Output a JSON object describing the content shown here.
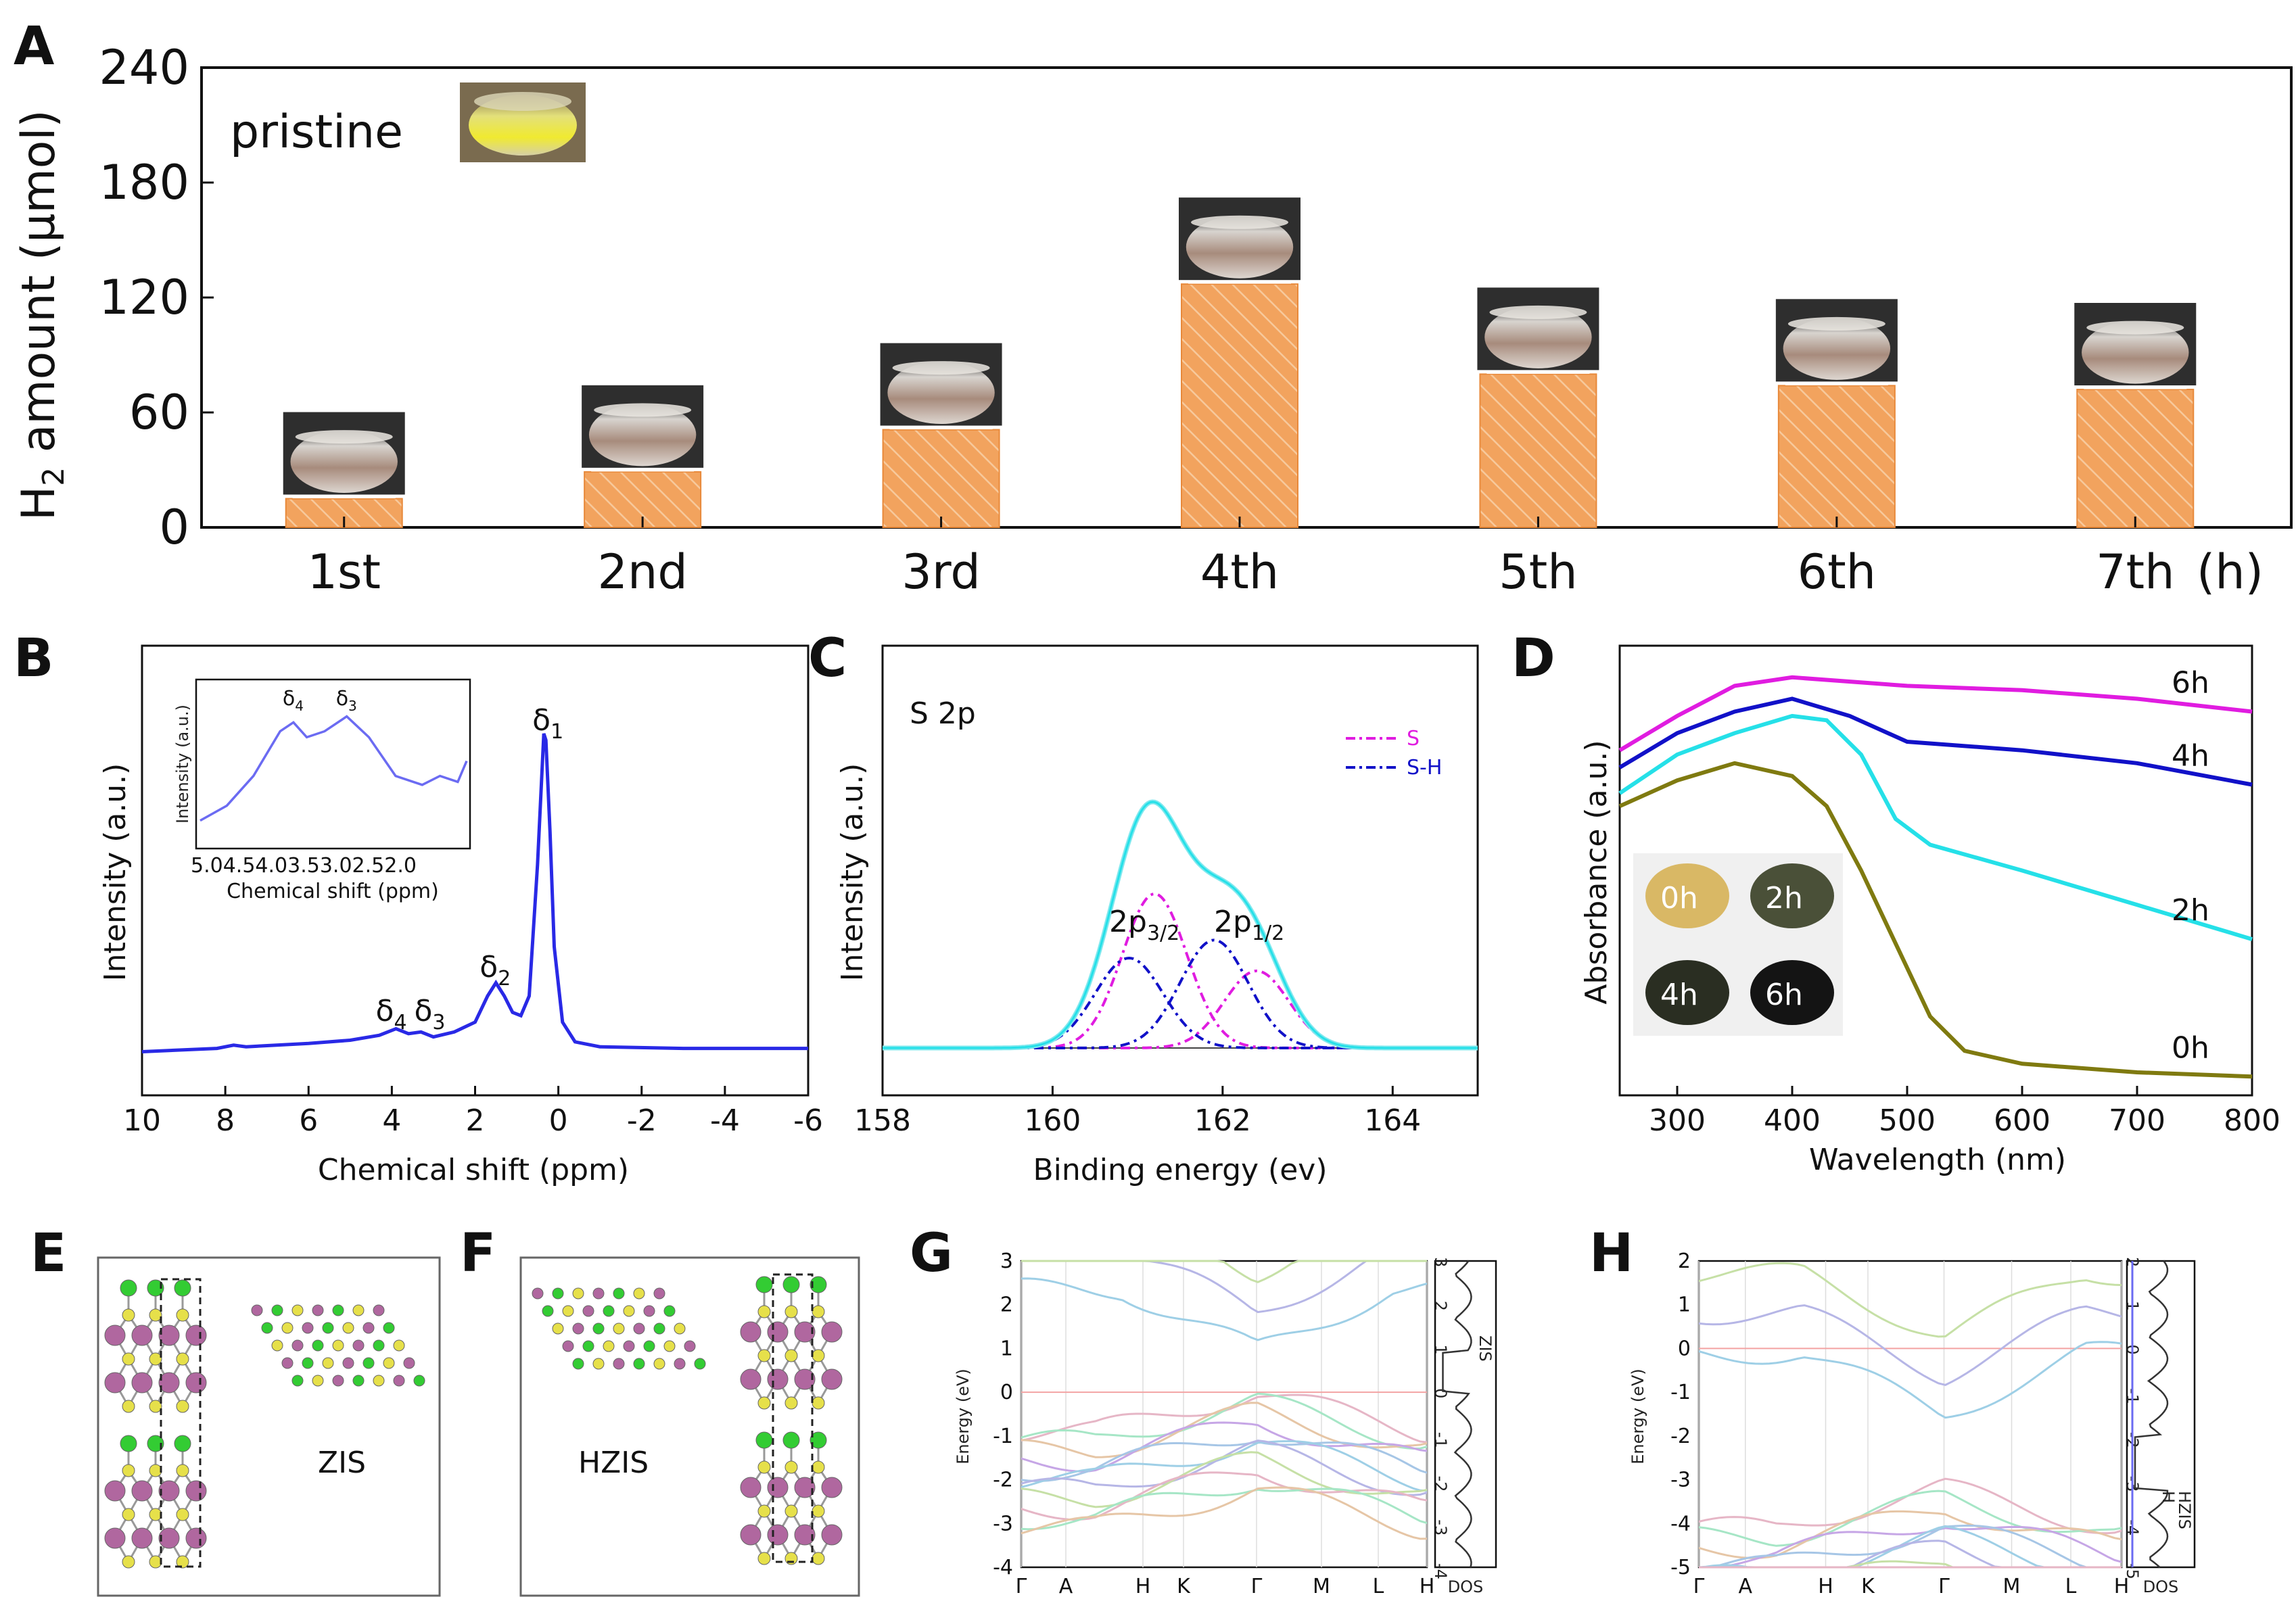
{
  "colors": {
    "bar": "#f2a35e",
    "blue": "#2929e6",
    "magenta": "#e01ce0",
    "cyan": "#25e0e8",
    "olive": "#7f7a10",
    "navy": "#1111c8",
    "light_cyan": "#7fe8ee"
  },
  "panel_labels": [
    "A",
    "B",
    "C",
    "D",
    "E",
    "F",
    "G",
    "H"
  ],
  "chart_data": [
    {
      "id": "A",
      "type": "bar",
      "categories": [
        "1st",
        "2nd",
        "3rd",
        "4th",
        "5th",
        "6th",
        "7th"
      ],
      "values": [
        15,
        29,
        51,
        127,
        80,
        74,
        72
      ],
      "ylabel_main": "H",
      "ylabel_sub": "2",
      "ylabel_rest": " amount (µmol)",
      "ylim": [
        0,
        240
      ],
      "yticks": [
        "0",
        "60",
        "120",
        "180",
        "240"
      ],
      "xunit": "(h)",
      "annotation": "pristine"
    },
    {
      "id": "B",
      "type": "line",
      "xlabel": "Chemical shift (ppm)",
      "ylabel": "Intensity (a.u.)",
      "xlim": [
        10,
        -6
      ],
      "xticks": [
        "10",
        "8",
        "6",
        "4",
        "2",
        "0",
        "-2",
        "-4",
        "-6"
      ],
      "x": [
        10,
        8.2,
        7.8,
        7.5,
        6,
        5,
        4.3,
        3.9,
        3.6,
        3.3,
        3.0,
        2.5,
        2.0,
        1.7,
        1.5,
        1.3,
        1.1,
        0.9,
        0.7,
        0.5,
        0.35,
        0.3,
        0.2,
        0.1,
        -0.1,
        -0.4,
        -1,
        -3,
        -6
      ],
      "y": [
        0.03,
        0.04,
        0.05,
        0.045,
        0.055,
        0.065,
        0.08,
        0.1,
        0.085,
        0.09,
        0.075,
        0.09,
        0.12,
        0.2,
        0.24,
        0.2,
        0.15,
        0.14,
        0.2,
        0.6,
        1.0,
        0.98,
        0.7,
        0.35,
        0.12,
        0.06,
        0.045,
        0.04,
        0.04
      ],
      "peaks": [
        {
          "main": "δ",
          "sub": "1",
          "x": 0.3
        },
        {
          "main": "δ",
          "sub": "2",
          "x": 1.5
        },
        {
          "main": "δ",
          "sub": "4",
          "x": 3.9
        },
        {
          "main": "δ",
          "sub": "3",
          "x": 3.3
        }
      ],
      "inset": {
        "ylabel": "Intensity (a.u.)",
        "xlabel": "Chemical shift (ppm)",
        "xticks": "5.04.54.03.53.02.52.0",
        "xlim": [
          5.0,
          2.0
        ],
        "x": [
          5.0,
          4.7,
          4.4,
          4.1,
          3.95,
          3.8,
          3.6,
          3.35,
          3.1,
          2.8,
          2.5,
          2.3,
          2.1,
          2.0
        ],
        "y": [
          0.12,
          0.22,
          0.42,
          0.72,
          0.78,
          0.68,
          0.72,
          0.82,
          0.68,
          0.42,
          0.36,
          0.42,
          0.38,
          0.52
        ],
        "peaks": [
          {
            "main": "δ",
            "sub": "4",
            "x": 3.95
          },
          {
            "main": "δ",
            "sub": "3",
            "x": 3.35
          }
        ]
      }
    },
    {
      "id": "C",
      "type": "line",
      "title": "S 2p",
      "xlabel": "Binding energy (ev)",
      "ylabel": "Intensity (a.u.)",
      "xlim": [
        158,
        165
      ],
      "xticks": [
        "158",
        "160",
        "162",
        "164"
      ],
      "legend": [
        "S",
        "S-H"
      ],
      "series": [
        {
          "name": "envelope",
          "center": 161.2,
          "note": "sum of components"
        },
        {
          "name": "S 2p3/2",
          "center": 161.2,
          "height": 0.6,
          "width": 0.38
        },
        {
          "name": "S 2p1/2",
          "center": 162.4,
          "height": 0.3,
          "width": 0.38
        },
        {
          "name": "S-H 2p3/2",
          "center": 160.9,
          "height": 0.35,
          "width": 0.4
        },
        {
          "name": "S-H 2p1/2",
          "center": 161.9,
          "height": 0.42,
          "width": 0.4
        }
      ],
      "peak_labels": [
        {
          "main": "2p",
          "sub": "3/2"
        },
        {
          "main": "2p",
          "sub": "1/2"
        }
      ]
    },
    {
      "id": "D",
      "type": "line",
      "xlabel": "Wavelength (nm)",
      "ylabel": "Absorbance (a.u.)",
      "xlim": [
        250,
        800
      ],
      "xticks": [
        "300",
        "400",
        "500",
        "600",
        "700",
        "800"
      ],
      "series": [
        {
          "name": "6h",
          "x": [
            250,
            300,
            350,
            400,
            500,
            600,
            700,
            800
          ],
          "y": [
            0.78,
            0.86,
            0.93,
            0.95,
            0.93,
            0.92,
            0.9,
            0.87
          ]
        },
        {
          "name": "4h",
          "x": [
            250,
            300,
            350,
            400,
            450,
            500,
            600,
            700,
            800
          ],
          "y": [
            0.74,
            0.82,
            0.87,
            0.9,
            0.86,
            0.8,
            0.78,
            0.75,
            0.7
          ]
        },
        {
          "name": "2h",
          "x": [
            250,
            300,
            350,
            400,
            430,
            460,
            490,
            520,
            600,
            700,
            800
          ],
          "y": [
            0.68,
            0.77,
            0.82,
            0.86,
            0.85,
            0.77,
            0.62,
            0.56,
            0.5,
            0.42,
            0.34
          ]
        },
        {
          "name": "0h",
          "x": [
            250,
            300,
            350,
            400,
            430,
            460,
            490,
            520,
            550,
            600,
            700,
            800
          ],
          "y": [
            0.65,
            0.71,
            0.75,
            0.72,
            0.65,
            0.5,
            0.33,
            0.16,
            0.08,
            0.05,
            0.03,
            0.02
          ]
        }
      ],
      "inset_labels": [
        "0h",
        "2h",
        "4h",
        "6h"
      ]
    },
    {
      "id": "G",
      "type": "line",
      "ylabel": "Energy (eV)",
      "ylim": [
        -4,
        3
      ],
      "yticks": [
        "3",
        "2",
        "1",
        "0",
        "-1",
        "-2",
        "-3",
        "-4"
      ],
      "kpoints": [
        "Γ",
        "A",
        "H",
        "K",
        "Γ",
        "M",
        "L",
        "H"
      ],
      "dos_label": "DOS",
      "dos_legend": "ZIS",
      "dos_ticks": [
        "3",
        "2",
        "1",
        "0",
        "-1",
        "-2",
        "-3",
        "-4"
      ]
    },
    {
      "id": "H",
      "type": "line",
      "ylabel": "Energy (eV)",
      "ylim": [
        -5,
        2
      ],
      "yticks": [
        "2",
        "1",
        "0",
        "-1",
        "-2",
        "-3",
        "-4",
        "-5"
      ],
      "kpoints": [
        "Γ",
        "A",
        "H",
        "K",
        "Γ",
        "M",
        "L",
        "H"
      ],
      "dos_label": "DOS",
      "dos_legend": [
        "HZIS",
        "H"
      ],
      "dos_ticks": [
        "2",
        "1",
        "0",
        "-1",
        "-2",
        "-3",
        "-4",
        "-5"
      ]
    }
  ],
  "structures": {
    "E_label": "ZIS",
    "F_label": "HZIS"
  }
}
